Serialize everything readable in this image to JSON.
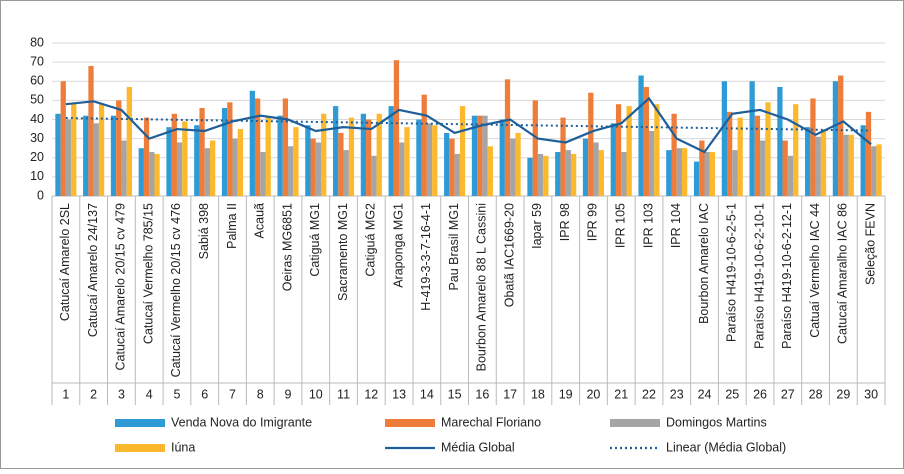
{
  "chart_data": {
    "type": "bar",
    "categories": [
      "Catucaí Amarelo 2SL",
      "Catucaí Amarelo 24/137",
      "Catucaí Amarelo 20/15 cv 479",
      "Catucaí Vermelho 785/15",
      "Catucaí Vermelho 20/15 cv 476",
      "Sabiá 398",
      "Palma II",
      "Acauã",
      "Oeiras MG6851",
      "Catiguá MG1",
      "Sacramento MG1",
      "Catiguá MG2",
      "Araponga MG1",
      "H-419-3-3-7-16-4-1",
      "Pau Brasil MG1",
      "Bourbon Amarelo 88 L Cassini",
      "Obatã IAC1669-20",
      "Iapar 59",
      "IPR 98",
      "IPR 99",
      "IPR 105",
      "IPR 103",
      "IPR 104",
      "Bourbon Amarelo IAC",
      "Paraíso H419-10-6-2-5-1",
      "Paraíso H419-10-6-2-10-1",
      "Paraíso H419-10-6-2-12-1",
      "Catuaí Vermelho IAC 44",
      "Catucaí Amaralho IAC 86",
      "Seleção FEVN"
    ],
    "category_numbers": [
      1,
      2,
      3,
      4,
      5,
      6,
      7,
      8,
      9,
      10,
      11,
      12,
      13,
      14,
      15,
      16,
      17,
      18,
      19,
      20,
      21,
      22,
      23,
      24,
      25,
      26,
      27,
      28,
      29,
      30
    ],
    "ylim": [
      0,
      80
    ],
    "yticks": [
      0,
      10,
      20,
      30,
      40,
      50,
      60,
      70,
      80
    ],
    "grid": true,
    "series": [
      {
        "name": "Venda Nova do Imigrante",
        "color": "#2e9bd6",
        "values": [
          43,
          42,
          42,
          25,
          36,
          37,
          46,
          55,
          42,
          37,
          47,
          43,
          47,
          40,
          33,
          42,
          40,
          20,
          23,
          30,
          38,
          63,
          24,
          18,
          60,
          60,
          57,
          36,
          60,
          37
        ]
      },
      {
        "name": "Marechal Floriano",
        "color": "#ee7d3b",
        "values": [
          60,
          68,
          50,
          41,
          43,
          46,
          49,
          51,
          51,
          30,
          33,
          40,
          71,
          53,
          30,
          42,
          61,
          50,
          41,
          54,
          48,
          57,
          43,
          29,
          44,
          42,
          29,
          51,
          63,
          44
        ]
      },
      {
        "name": "Domingos Martins",
        "color": "#a5a5a5",
        "values": [
          40,
          38,
          29,
          23,
          28,
          25,
          30,
          23,
          26,
          28,
          24,
          21,
          28,
          38,
          22,
          42,
          30,
          22,
          24,
          28,
          23,
          34,
          25,
          23,
          24,
          29,
          21,
          31,
          32,
          26
        ]
      },
      {
        "name": "Iúna",
        "color": "#fcb92d",
        "values": [
          48,
          48,
          57,
          22,
          39,
          29,
          35,
          41,
          36,
          43,
          41,
          43,
          36,
          37,
          47,
          26,
          33,
          21,
          22,
          24,
          47,
          48,
          25,
          23,
          41,
          49,
          48,
          35,
          32,
          27
        ]
      },
      {
        "name": "Média Global",
        "color": "#1f5f99",
        "type": "line",
        "values": [
          48,
          49.5,
          45,
          30,
          35,
          34,
          39,
          42,
          40,
          34,
          36,
          35,
          45,
          42,
          33,
          37,
          40,
          30,
          28,
          34,
          38,
          51,
          30,
          23,
          43,
          45,
          40,
          32,
          39,
          27
        ]
      },
      {
        "name": "Linear (Média Global)",
        "color": "#1f5f99",
        "type": "trend"
      }
    ]
  }
}
